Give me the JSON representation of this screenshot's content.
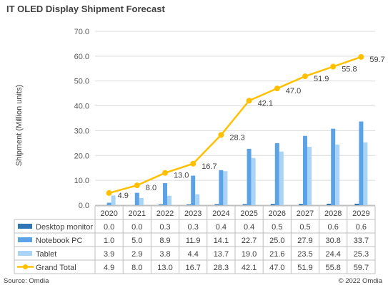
{
  "title": "IT OLED Display Shipment Forecast",
  "source": "Source: Omdia",
  "copyright": "© 2022 Omdia",
  "chart_data": {
    "type": "bar",
    "title": "IT OLED Display Shipment Forecast",
    "ylabel": "Shipment (Million units)",
    "ylim": [
      0,
      70
    ],
    "yticks": [
      "0.0",
      "10.0",
      "20.0",
      "30.0",
      "40.0",
      "50.0",
      "60.0",
      "70.0"
    ],
    "grid": true,
    "categories": [
      "2020",
      "2021",
      "2022",
      "2023",
      "2024",
      "2025",
      "2026",
      "2027",
      "2028",
      "2029"
    ],
    "series": [
      {
        "name": "Desktop monitor",
        "kind": "bar",
        "color": "#2e75b6",
        "values": [
          0.0,
          0.0,
          0.3,
          0.3,
          0.4,
          0.4,
          0.5,
          0.5,
          0.6,
          0.6
        ]
      },
      {
        "name": "Notebook PC",
        "kind": "bar",
        "color": "#5ba3e6",
        "values": [
          1.0,
          5.0,
          8.9,
          11.9,
          14.1,
          22.7,
          25.0,
          27.9,
          30.8,
          33.7
        ]
      },
      {
        "name": "Tablet",
        "kind": "bar",
        "color": "#a9d4f5",
        "values": [
          3.9,
          2.9,
          3.8,
          4.4,
          13.7,
          19.0,
          21.6,
          23.5,
          24.4,
          25.3
        ]
      },
      {
        "name": "Grand Total",
        "kind": "line",
        "color": "#ffc000",
        "values": [
          4.9,
          8.0,
          13.0,
          16.7,
          28.3,
          42.1,
          47.0,
          51.9,
          55.8,
          59.7
        ]
      }
    ],
    "data_table": {
      "headers": [
        "2020",
        "2021",
        "2022",
        "2023",
        "2024",
        "2025",
        "2026",
        "2027",
        "2028",
        "2029"
      ],
      "rows": [
        {
          "label": "Desktop monitor",
          "cells": [
            "0.0",
            "0.0",
            "0.3",
            "0.3",
            "0.4",
            "0.4",
            "0.5",
            "0.5",
            "0.6",
            "0.6"
          ]
        },
        {
          "label": "Notebook PC",
          "cells": [
            "1.0",
            "5.0",
            "8.9",
            "11.9",
            "14.1",
            "22.7",
            "25.0",
            "27.9",
            "30.8",
            "33.7"
          ]
        },
        {
          "label": "Tablet",
          "cells": [
            "3.9",
            "2.9",
            "3.8",
            "4.4",
            "13.7",
            "19.0",
            "21.6",
            "23.5",
            "24.4",
            "25.3"
          ]
        },
        {
          "label": "Grand Total",
          "cells": [
            "4.9",
            "8.0",
            "13.0",
            "16.7",
            "28.3",
            "42.1",
            "47.0",
            "51.9",
            "55.8",
            "59.7"
          ]
        }
      ]
    },
    "line_labels": [
      "4.9",
      "8.0",
      "13.0",
      "16.7",
      "28.3",
      "42.1",
      "47.0",
      "51.9",
      "55.8",
      "59.7"
    ]
  }
}
